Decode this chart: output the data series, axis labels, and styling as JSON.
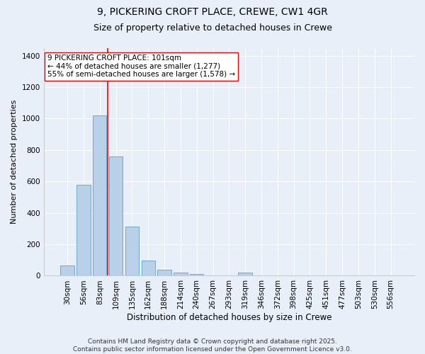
{
  "title1": "9, PICKERING CROFT PLACE, CREWE, CW1 4GR",
  "title2": "Size of property relative to detached houses in Crewe",
  "xlabel": "Distribution of detached houses by size in Crewe",
  "ylabel": "Number of detached properties",
  "categories": [
    "30sqm",
    "56sqm",
    "83sqm",
    "109sqm",
    "135sqm",
    "162sqm",
    "188sqm",
    "214sqm",
    "240sqm",
    "267sqm",
    "293sqm",
    "319sqm",
    "346sqm",
    "372sqm",
    "398sqm",
    "425sqm",
    "451sqm",
    "477sqm",
    "503sqm",
    "530sqm",
    "556sqm"
  ],
  "values": [
    65,
    580,
    1020,
    760,
    315,
    95,
    40,
    22,
    12,
    0,
    0,
    18,
    0,
    0,
    0,
    0,
    0,
    0,
    0,
    0,
    0
  ],
  "bar_color": "#b8d0e8",
  "bar_edge_color": "#6aaad4",
  "vline_color": "red",
  "vline_x_index": 3,
  "annotation_text": "9 PICKERING CROFT PLACE: 101sqm\n← 44% of detached houses are smaller (1,277)\n55% of semi-detached houses are larger (1,578) →",
  "annotation_box_color": "white",
  "annotation_box_edge_color": "red",
  "ylim": [
    0,
    1450
  ],
  "yticks": [
    0,
    200,
    400,
    600,
    800,
    1000,
    1200,
    1400
  ],
  "bg_color": "#e8eff8",
  "plot_bg_color": "#e8eff8",
  "footer": "Contains HM Land Registry data © Crown copyright and database right 2025.\nContains public sector information licensed under the Open Government Licence v3.0.",
  "title1_fontsize": 10,
  "title2_fontsize": 9,
  "xlabel_fontsize": 8.5,
  "ylabel_fontsize": 8,
  "tick_fontsize": 7.5,
  "annotation_fontsize": 7.5,
  "footer_fontsize": 6.5
}
